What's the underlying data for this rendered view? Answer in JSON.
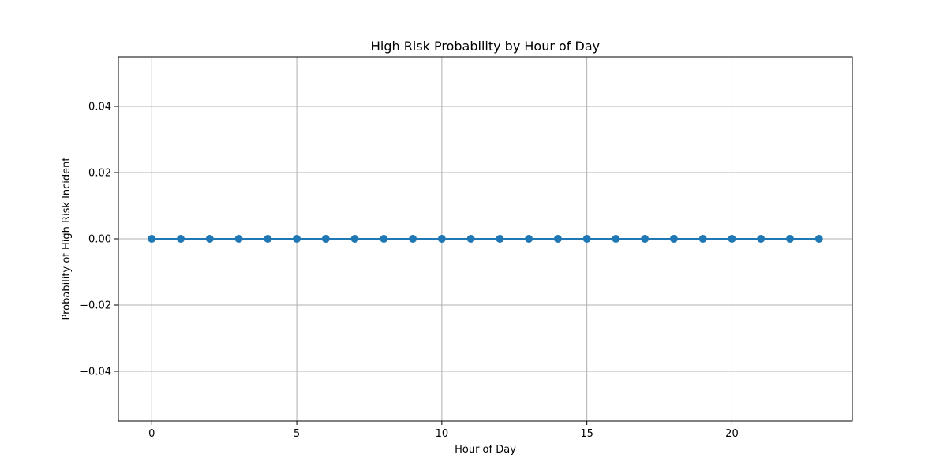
{
  "chart_data": {
    "type": "line",
    "title": "High Risk Probability by Hour of Day",
    "xlabel": "Hour of Day",
    "ylabel": "Probability of High Risk Incident",
    "x": [
      0,
      1,
      2,
      3,
      4,
      5,
      6,
      7,
      8,
      9,
      10,
      11,
      12,
      13,
      14,
      15,
      16,
      17,
      18,
      19,
      20,
      21,
      22,
      23
    ],
    "series": [
      {
        "values": [
          0,
          0,
          0,
          0,
          0,
          0,
          0,
          0,
          0,
          0,
          0,
          0,
          0,
          0,
          0,
          0,
          0,
          0,
          0,
          0,
          0,
          0,
          0,
          0
        ],
        "color": "#1f77b4",
        "marker": "circle"
      }
    ],
    "xlim": [
      -1.15,
      24.15
    ],
    "ylim": [
      -0.055,
      0.055
    ],
    "xticks": [
      0,
      5,
      10,
      15,
      20
    ],
    "xtick_labels": [
      "0",
      "5",
      "10",
      "15",
      "20"
    ],
    "yticks": [
      -0.04,
      -0.02,
      0.0,
      0.02,
      0.04
    ],
    "ytick_labels": [
      "−0.04",
      "−0.02",
      "0.00",
      "0.02",
      "0.04"
    ],
    "grid": true,
    "legend": false
  }
}
